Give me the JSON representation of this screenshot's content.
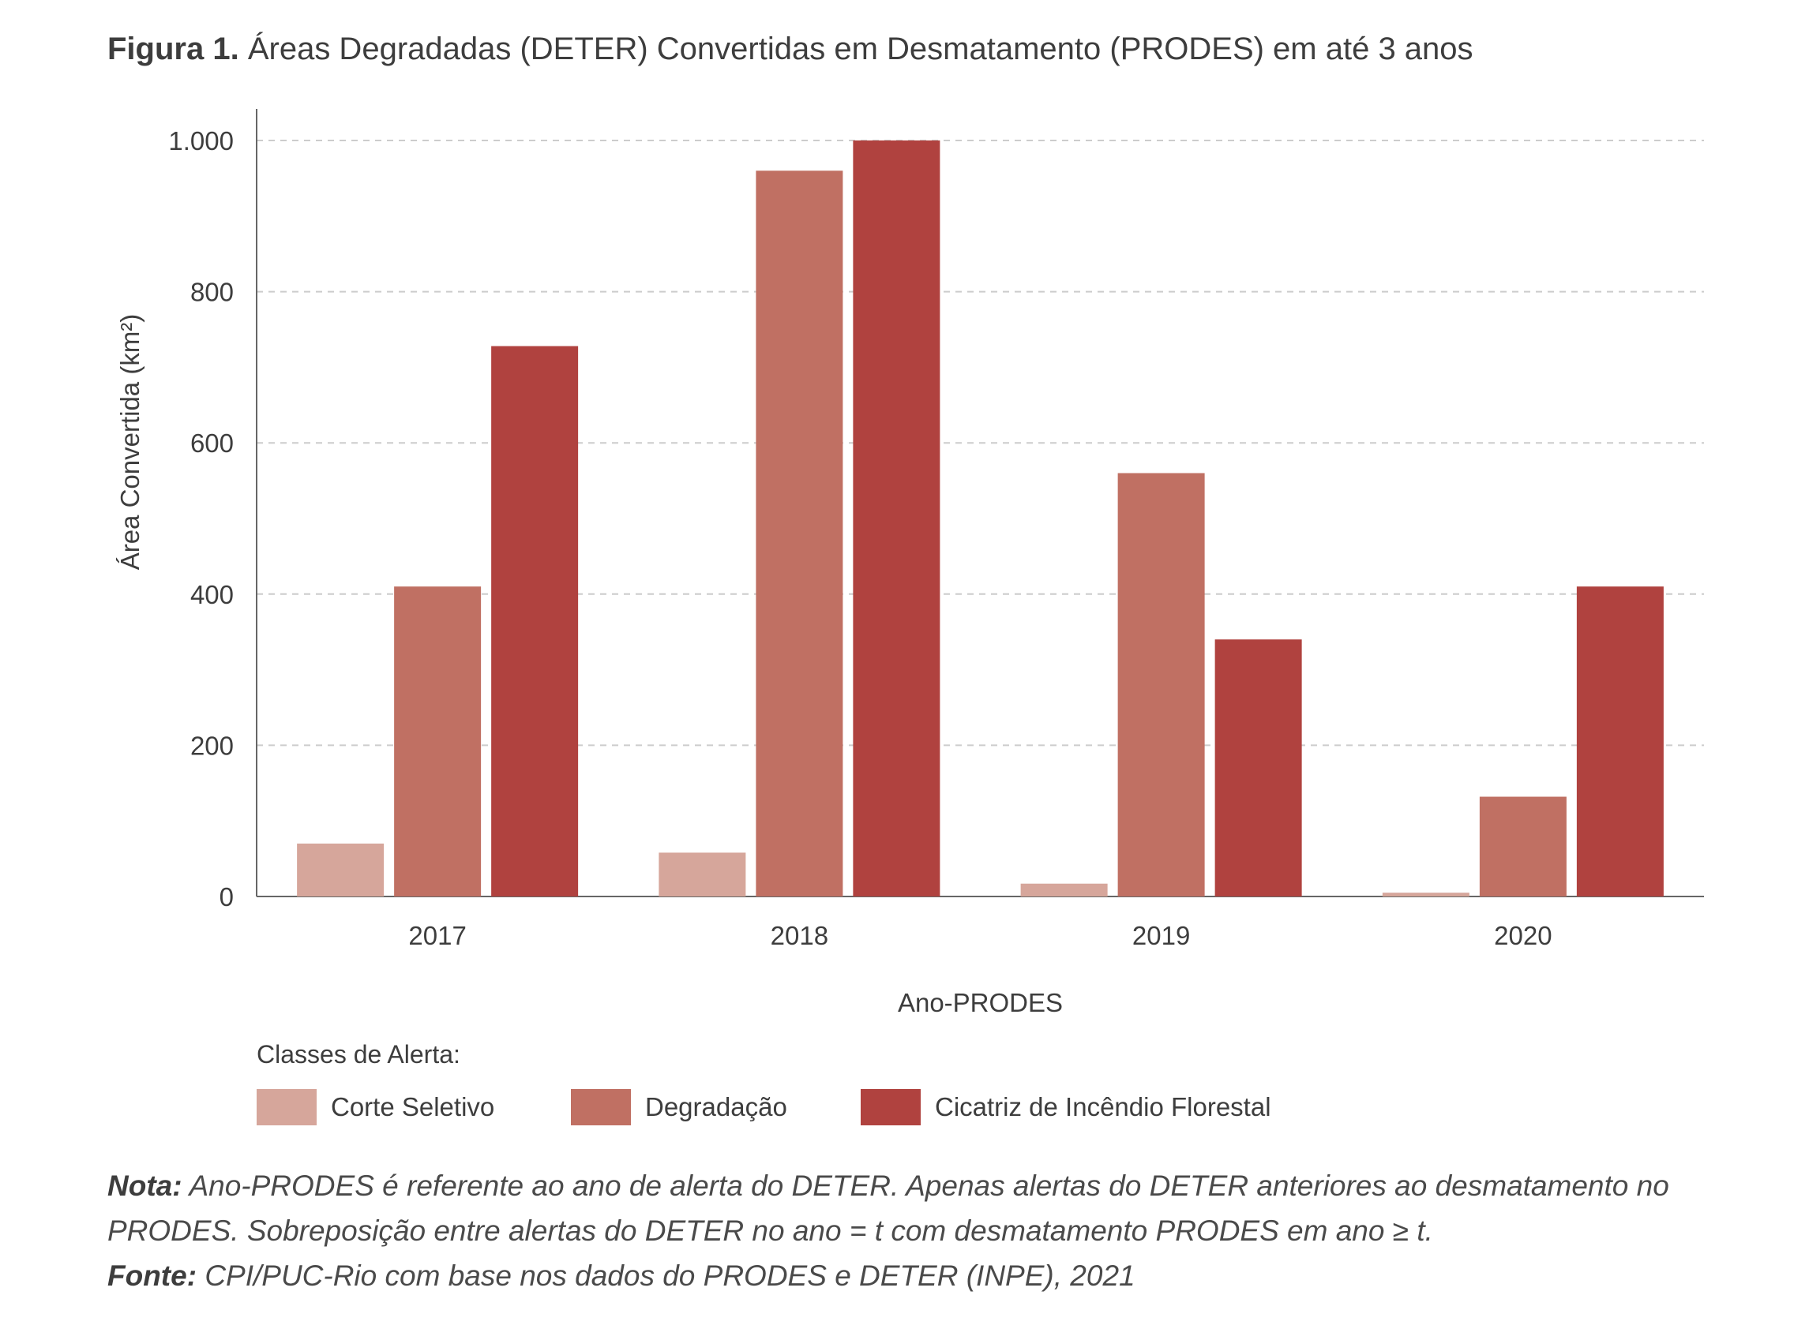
{
  "figure": {
    "title_prefix": "Figura 1.",
    "title_text": "Áreas Degradadas (DETER) Convertidas em Desmatamento (PRODES) em até 3 anos"
  },
  "colors": {
    "corte_seletivo": "#d6a69b",
    "degradacao": "#c07063",
    "cicatriz": "#b0423f",
    "grid": "#cccccc",
    "axis": "#666666"
  },
  "chart_data": {
    "type": "bar",
    "title": "Áreas Degradadas (DETER) Convertidas em Desmatamento (PRODES) em até 3 anos",
    "xlabel": "Ano-PRODES",
    "ylabel": "Área Convertida (km²)",
    "ylim": [
      0,
      1000
    ],
    "yticks": [
      0,
      200,
      400,
      600,
      800,
      1000
    ],
    "ytick_labels": [
      "0",
      "200",
      "400",
      "600",
      "800",
      "1.000"
    ],
    "categories": [
      "2017",
      "2018",
      "2019",
      "2020"
    ],
    "grid": "horizontal dashed",
    "legend_position": "bottom",
    "series": [
      {
        "name": "Corte Seletivo",
        "values": [
          70,
          58,
          17,
          5
        ]
      },
      {
        "name": "Degradação",
        "values": [
          410,
          960,
          560,
          132
        ]
      },
      {
        "name": "Cicatriz de Incêndio Florestal",
        "values": [
          728,
          1000,
          340,
          410
        ]
      }
    ]
  },
  "legend": {
    "title": "Classes de Alerta:",
    "items": [
      "Corte Seletivo",
      "Degradação",
      "Cicatriz de Incêndio Florestal"
    ]
  },
  "notes": {
    "nota_label": "Nota:",
    "nota_text": "Ano-PRODES é referente ao ano de alerta do DETER. Apenas alertas do DETER anteriores ao desmatamento no PRODES. Sobreposição entre alertas do DETER no ano = t com desmatamento PRODES em ano ≥ t.",
    "fonte_label": "Fonte:",
    "fonte_text": "CPI/PUC-Rio com base nos dados do PRODES e DETER (INPE), 2021"
  }
}
